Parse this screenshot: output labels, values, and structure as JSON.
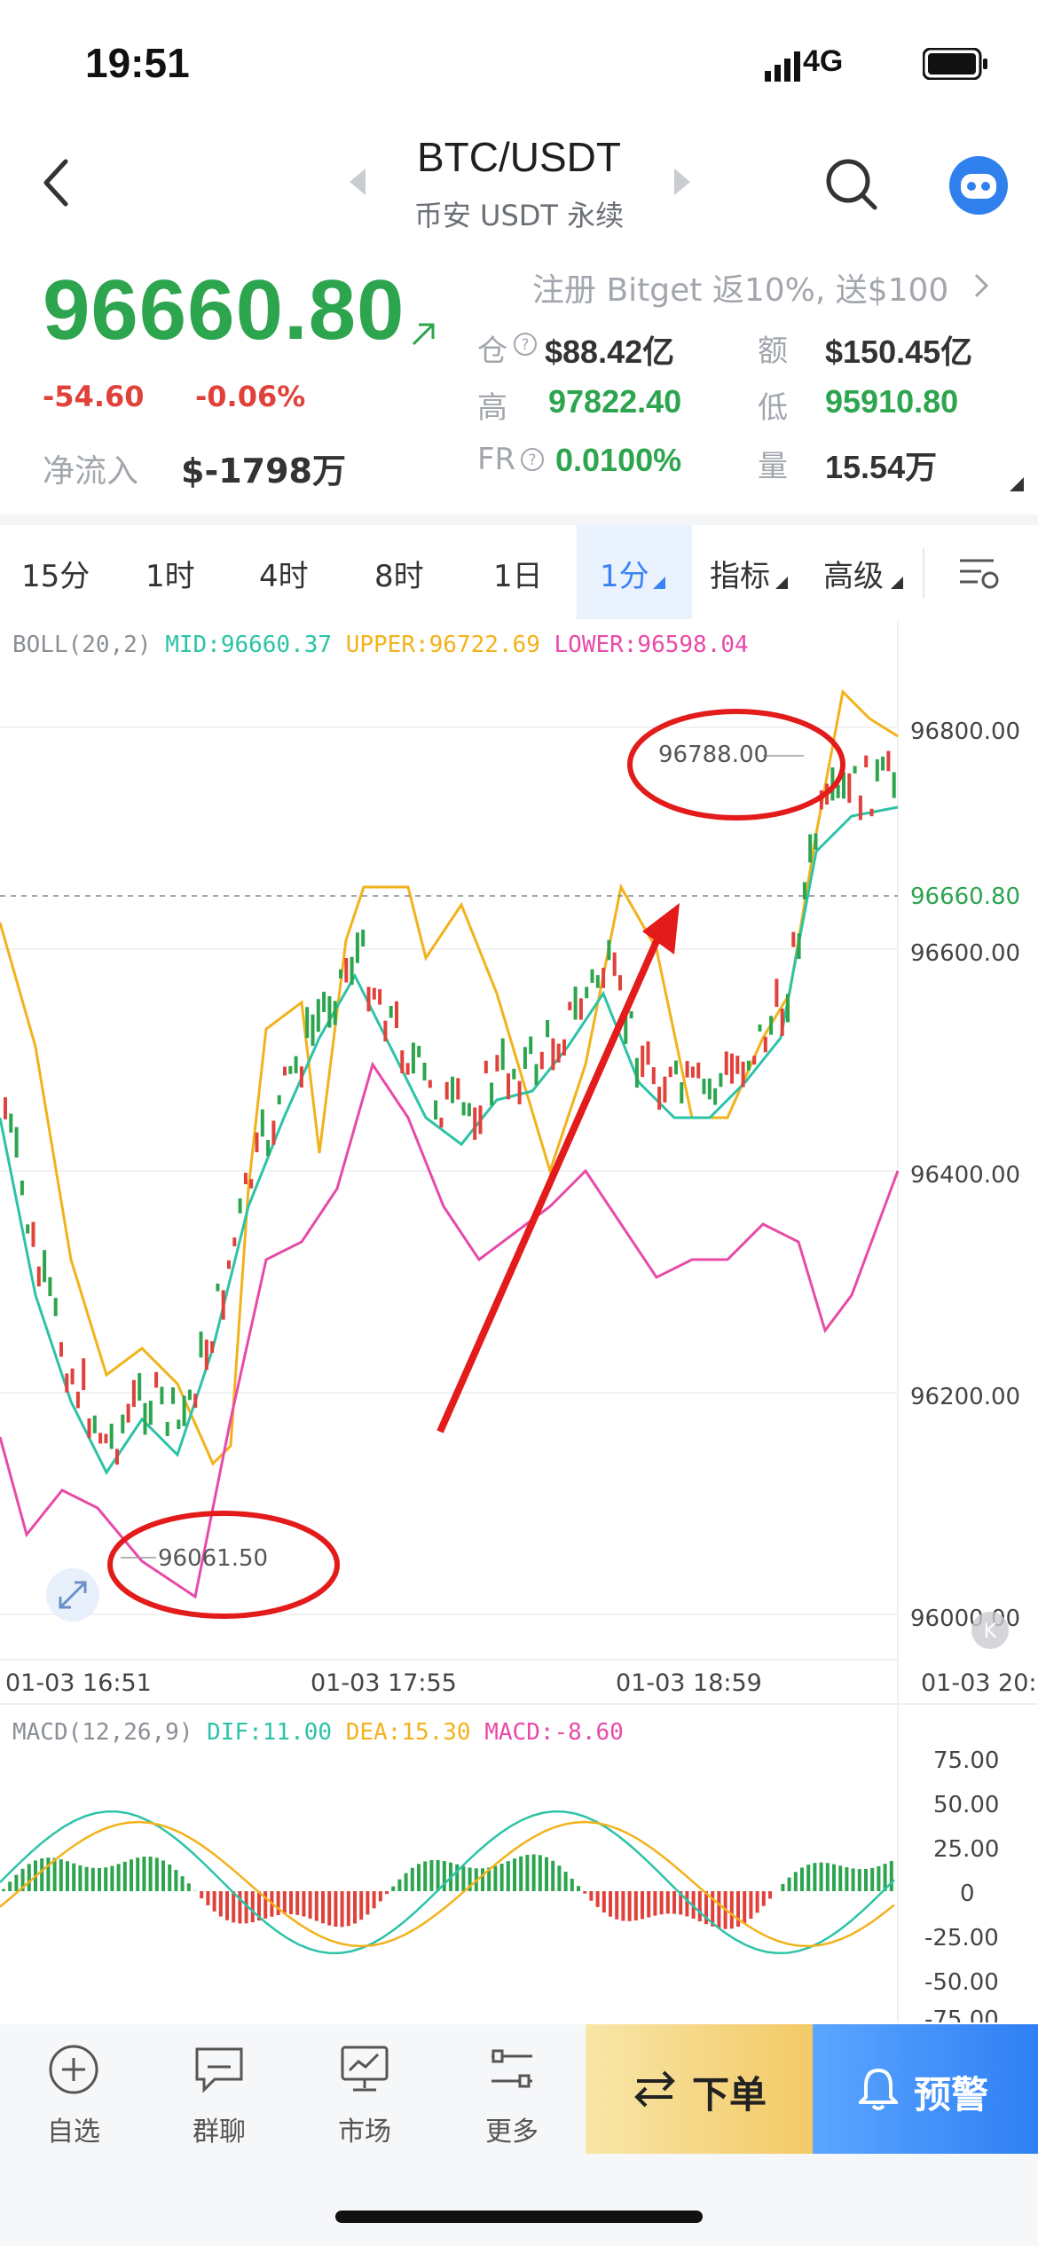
{
  "status_bar": {
    "time": "19:51",
    "network": "4G"
  },
  "header": {
    "pair": "BTC/USDT",
    "exchange": "币安 USDT 永续"
  },
  "price": {
    "last": "96660.80",
    "change": "-54.60",
    "change_pct": "-0.06%",
    "net_inflow_label": "净流入",
    "net_inflow_value": "$-1798万"
  },
  "promo": "注册 Bitget 返10%, 送$100",
  "stats": {
    "position_label": "仓",
    "position_value": "$88.42亿",
    "amount_label": "额",
    "amount_value": "$150.45亿",
    "high_label": "高",
    "high_value": "97822.40",
    "low_label": "低",
    "low_value": "95910.80",
    "fr_label": "FR",
    "fr_value": "0.0100%",
    "volume_label": "量",
    "volume_value": "15.54万"
  },
  "tabs": [
    "15分",
    "1时",
    "4时",
    "8时",
    "1日",
    "1分",
    "指标",
    "高级"
  ],
  "active_tab": "1分",
  "boll_legend": {
    "name": "BOLL(20,2)",
    "mid": "MID:96660.37",
    "upper": "UPPER:96722.69",
    "lower": "LOWER:96598.04"
  },
  "price_axis": [
    "96800.00",
    "96660.80",
    "96600.00",
    "96400.00",
    "96200.00",
    "96000.00"
  ],
  "time_axis": [
    "01-03 16:51",
    "01-03 17:55",
    "01-03 18:59",
    "01-03 20:"
  ],
  "annotations": {
    "high_label": "96788.00",
    "low_label": "96061.50"
  },
  "macd_legend": {
    "name": "MACD(12,26,9)",
    "dif": "DIF:11.00",
    "dea": "DEA:15.30",
    "macd": "MACD:-8.60"
  },
  "macd_axis": [
    "75.00",
    "50.00",
    "25.00",
    "0",
    "-25.00",
    "-50.00",
    "-75.00"
  ],
  "bottom_nav": [
    "自选",
    "群聊",
    "市场",
    "更多"
  ],
  "order_button": "下单",
  "alert_button": "预警",
  "colors": {
    "up": "#2da44e",
    "down": "#e0413b",
    "accent": "#3b82f6",
    "boll_mid": "#2cc3a7",
    "boll_upper": "#f2b21b",
    "boll_lower": "#e84aa8"
  }
}
